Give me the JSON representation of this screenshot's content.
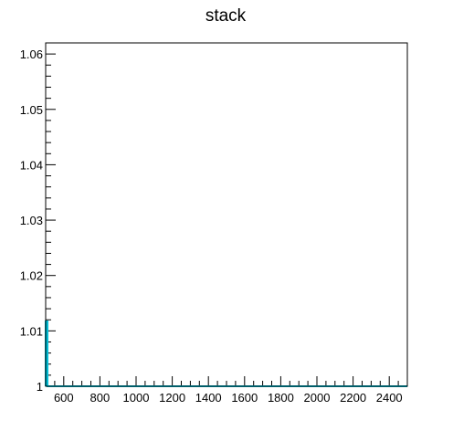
{
  "chart_data": {
    "type": "bar",
    "title": "stack",
    "xlabel": "",
    "ylabel": "",
    "xlim": [
      500,
      2500
    ],
    "ylim": [
      1.0,
      1.062
    ],
    "x_ticks": [
      600,
      800,
      1000,
      1200,
      1400,
      1600,
      1800,
      2000,
      2200,
      2400
    ],
    "y_ticks": [
      1.0,
      1.01,
      1.02,
      1.03,
      1.04,
      1.05,
      1.06
    ],
    "y_tick_labels": [
      "1",
      "1.01",
      "1.02",
      "1.03",
      "1.04",
      "1.05",
      "1.06"
    ],
    "series": [
      {
        "color": "#00bcd4",
        "bin_edges": [
          500,
          510,
          2500
        ],
        "values": [
          1.0117,
          1.0
        ]
      }
    ],
    "grid": false
  }
}
